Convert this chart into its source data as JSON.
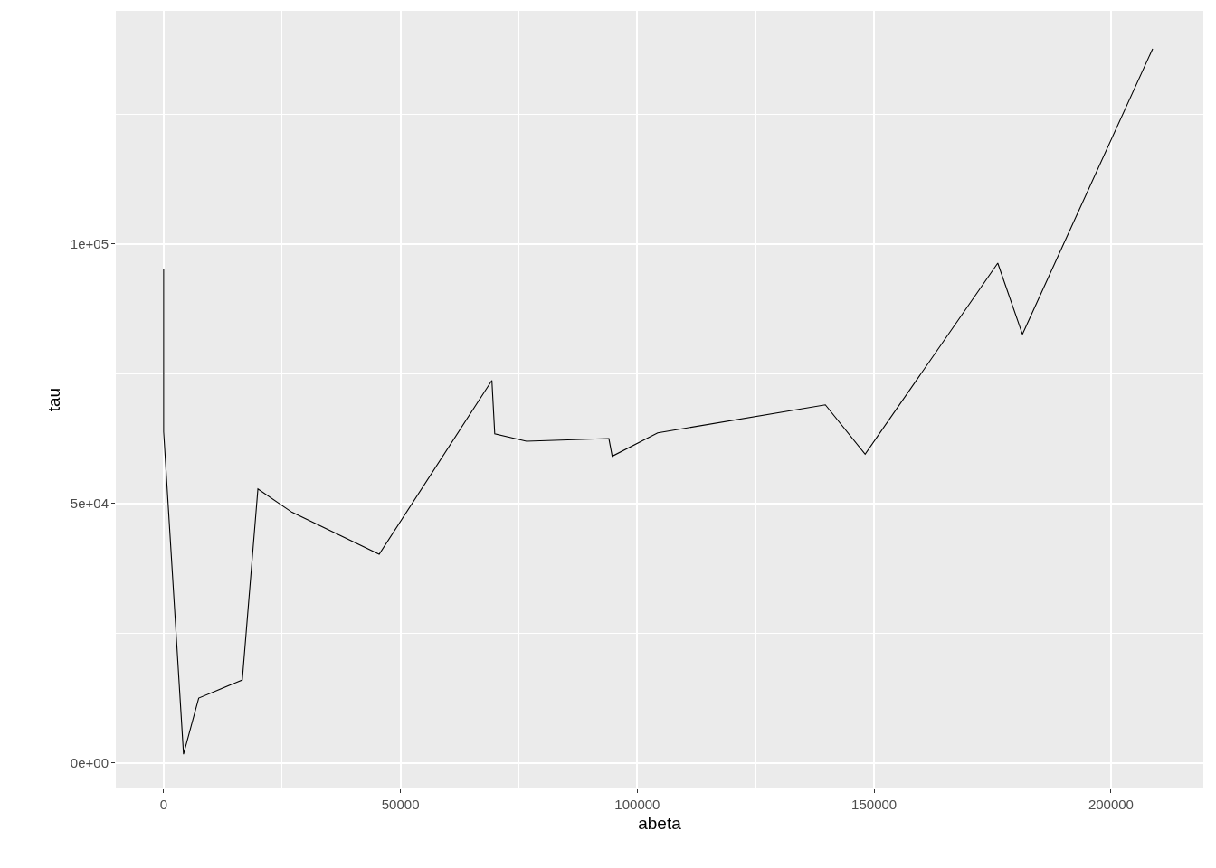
{
  "chart_data": {
    "type": "line",
    "xlabel": "abeta",
    "ylabel": "tau",
    "x": [
      0,
      0,
      4200,
      7400,
      16600,
      19900,
      27100,
      45500,
      69300,
      69900,
      76600,
      94000,
      94700,
      104300,
      139700,
      148100,
      176100,
      181300,
      208800
    ],
    "series": [
      {
        "color": "#000000",
        "values": [
          95100,
          63800,
          1700,
          12500,
          16000,
          52800,
          48300,
          40200,
          73700,
          63400,
          62000,
          62500,
          59100,
          63600,
          69000,
          59500,
          96300,
          82600,
          137600
        ]
      }
    ],
    "xlim": [
      -10100,
      219500
    ],
    "ylim": [
      -4900,
      144900
    ],
    "xticks": [
      0,
      50000,
      100000,
      150000,
      200000
    ],
    "yticks": [
      {
        "value": 0,
        "label": "0e+00"
      },
      {
        "value": 50000,
        "label": "5e+04"
      },
      {
        "value": 100000,
        "label": "1e+05"
      }
    ],
    "grid": true,
    "marker": "none",
    "line_style": "solid"
  }
}
